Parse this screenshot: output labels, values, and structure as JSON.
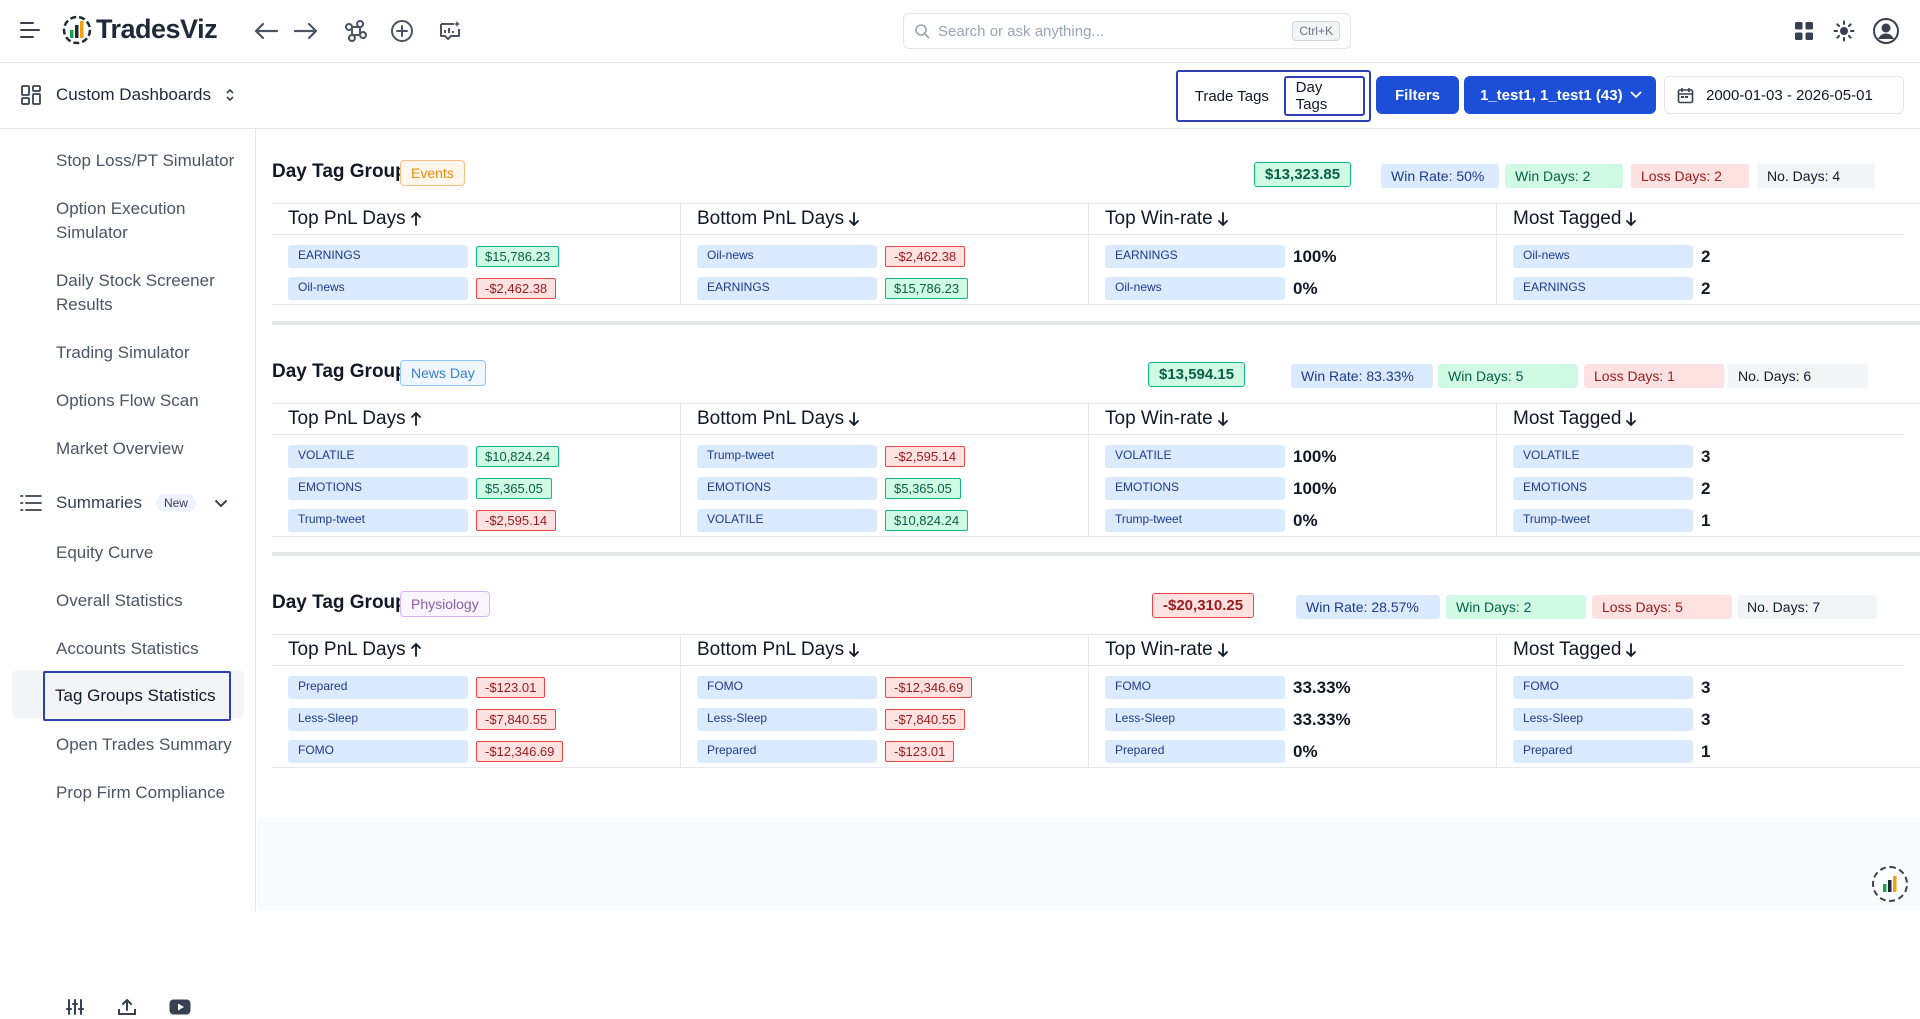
{
  "app": {
    "name": "TradesViz",
    "search_placeholder": "Search or ask anything...",
    "search_shortcut": "Ctrl+K"
  },
  "subbar": {
    "dashboard_label": "Custom Dashboards",
    "trade_tags_label": "Trade Tags",
    "day_tags_label": "Day Tags",
    "filters_label": "Filters",
    "accounts_label": "1_test1, 1_test1 (43)",
    "date_range": "2000-01-03 - 2026-05-01"
  },
  "sidebar": {
    "items_top": [
      "Stop Loss/PT Simulator",
      "Option Execution Simulator",
      "Daily Stock Screener Results",
      "Trading Simulator",
      "Options Flow Scan",
      "Market Overview"
    ],
    "summaries_label": "Summaries",
    "summaries_badge": "New",
    "items_summaries": [
      "Equity Curve",
      "Overall Statistics",
      "Accounts Statistics",
      "Tag Groups Statistics",
      "Open Trades Summary",
      "Prop Firm Compliance"
    ]
  },
  "labels": {
    "group_prefix": "Day Tag Group:",
    "col_top_pnl": "Top PnL Days",
    "col_bottom_pnl": "Bottom PnL Days",
    "col_top_winrate": "Top Win-rate",
    "col_most_tagged": "Most Tagged"
  },
  "groups": [
    {
      "name": "Events",
      "total": "$13,323.85",
      "win_rate": "Win Rate: 50%",
      "win_days": "Win Days: 2",
      "loss_days": "Loss Days: 2",
      "no_days": "No. Days: 4",
      "top_pnl": [
        [
          "EARNINGS",
          "$15,786.23",
          "pos"
        ],
        [
          "Oil-news",
          "-$2,462.38",
          "neg"
        ]
      ],
      "bottom_pnl": [
        [
          "Oil-news",
          "-$2,462.38",
          "neg"
        ],
        [
          "EARNINGS",
          "$15,786.23",
          "pos"
        ]
      ],
      "top_winrate": [
        [
          "EARNINGS",
          "100%"
        ],
        [
          "Oil-news",
          "0%"
        ]
      ],
      "most_tagged": [
        [
          "Oil-news",
          "2"
        ],
        [
          "EARNINGS",
          "2"
        ]
      ]
    },
    {
      "name": "News Day",
      "total": "$13,594.15",
      "win_rate": "Win Rate: 83.33%",
      "win_days": "Win Days: 5",
      "loss_days": "Loss Days: 1",
      "no_days": "No. Days: 6",
      "top_pnl": [
        [
          "VOLATILE",
          "$10,824.24",
          "pos"
        ],
        [
          "EMOTIONS",
          "$5,365.05",
          "pos"
        ],
        [
          "Trump-tweet",
          "-$2,595.14",
          "neg"
        ]
      ],
      "bottom_pnl": [
        [
          "Trump-tweet",
          "-$2,595.14",
          "neg"
        ],
        [
          "EMOTIONS",
          "$5,365.05",
          "pos"
        ],
        [
          "VOLATILE",
          "$10,824.24",
          "pos"
        ]
      ],
      "top_winrate": [
        [
          "VOLATILE",
          "100%"
        ],
        [
          "EMOTIONS",
          "100%"
        ],
        [
          "Trump-tweet",
          "0%"
        ]
      ],
      "most_tagged": [
        [
          "VOLATILE",
          "3"
        ],
        [
          "EMOTIONS",
          "2"
        ],
        [
          "Trump-tweet",
          "1"
        ]
      ]
    },
    {
      "name": "Physiology",
      "total": "-$20,310.25",
      "win_rate": "Win Rate: 28.57%",
      "win_days": "Win Days: 2",
      "loss_days": "Loss Days: 5",
      "no_days": "No. Days: 7",
      "top_pnl": [
        [
          "Prepared",
          "-$123.01",
          "neg"
        ],
        [
          "Less-Sleep",
          "-$7,840.55",
          "neg"
        ],
        [
          "FOMO",
          "-$12,346.69",
          "neg"
        ]
      ],
      "bottom_pnl": [
        [
          "FOMO",
          "-$12,346.69",
          "neg"
        ],
        [
          "Less-Sleep",
          "-$7,840.55",
          "neg"
        ],
        [
          "Prepared",
          "-$123.01",
          "neg"
        ]
      ],
      "top_winrate": [
        [
          "FOMO",
          "33.33%"
        ],
        [
          "Less-Sleep",
          "33.33%"
        ],
        [
          "Prepared",
          "0%"
        ]
      ],
      "most_tagged": [
        [
          "FOMO",
          "3"
        ],
        [
          "Less-Sleep",
          "3"
        ],
        [
          "Prepared",
          "1"
        ]
      ]
    }
  ]
}
